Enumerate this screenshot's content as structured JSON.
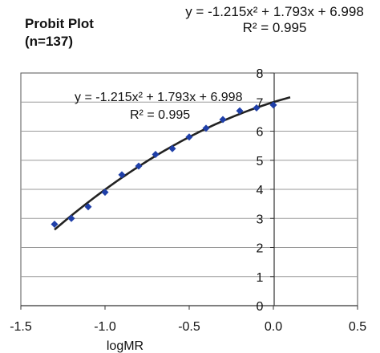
{
  "header": {
    "title_line1": "Probit Plot",
    "title_line2": "(n=137)",
    "equation": "y = -1.215x² + 1.793x + 6.998",
    "r_squared": "R² = 0.995"
  },
  "chart_data": {
    "type": "scatter",
    "title": "Probit Plot (n=137)",
    "xlabel": "logMR",
    "ylabel": "",
    "xlim": [
      -1.5,
      0.5
    ],
    "ylim": [
      0,
      8
    ],
    "x_ticks": [
      "-1.5",
      "-1.0",
      "-0.5",
      "0.0",
      "0.5"
    ],
    "y_ticks": [
      "0",
      "1",
      "2",
      "3",
      "4",
      "5",
      "6",
      "7",
      "8"
    ],
    "grid": true,
    "series": [
      {
        "name": "",
        "color": "#1f3fa8",
        "x": [
          -1.3,
          -1.2,
          -1.1,
          -1.0,
          -0.9,
          -0.8,
          -0.7,
          -0.6,
          -0.5,
          -0.4,
          -0.3,
          -0.2,
          -0.1,
          0.0
        ],
        "y": [
          2.8,
          3.0,
          3.4,
          3.9,
          4.5,
          4.8,
          5.2,
          5.4,
          5.8,
          6.1,
          6.4,
          6.7,
          6.8,
          6.9
        ]
      }
    ],
    "trendline": {
      "type": "polynomial",
      "coefficients": [
        -1.215,
        1.793,
        6.998
      ],
      "x_range": [
        -1.3,
        0.1
      ],
      "color": "#222222",
      "label": "y = -1.215x² + 1.793x + 6.998",
      "r_squared_label": "R² = 0.995"
    },
    "plot_background": "#ffffff",
    "gridline_color": "#9a9a9a"
  }
}
